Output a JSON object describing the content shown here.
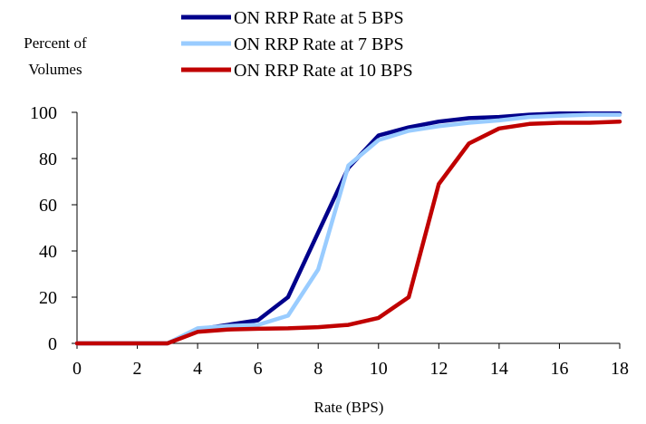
{
  "chart_data": {
    "type": "line",
    "xlabel": "Rate (BPS)",
    "ylabel": "Percent of Volumes",
    "ylabel_lines": [
      "Percent of",
      "Volumes"
    ],
    "xlim": [
      0,
      18
    ],
    "ylim": [
      0,
      100
    ],
    "x_ticks": [
      0,
      2,
      4,
      6,
      8,
      10,
      12,
      14,
      16,
      18
    ],
    "y_ticks": [
      0,
      20,
      40,
      60,
      80,
      100
    ],
    "grid": false,
    "legend_position": "top",
    "series": [
      {
        "name": "ON RRP Rate at 5 BPS",
        "color": "#00008B",
        "x": [
          0,
          1,
          2,
          3,
          4,
          5,
          6,
          7,
          8,
          9,
          10,
          11,
          12,
          13,
          14,
          15,
          16,
          17,
          18
        ],
        "y": [
          0,
          0,
          0,
          0,
          6,
          8,
          10,
          20,
          48,
          76,
          90,
          93.5,
          96,
          97.5,
          98,
          99,
          99.5,
          99.5,
          99.5
        ]
      },
      {
        "name": "ON RRP Rate at 7 BPS",
        "color": "#99CCFF",
        "x": [
          0,
          1,
          2,
          3,
          4,
          5,
          6,
          7,
          8,
          9,
          10,
          11,
          12,
          13,
          14,
          15,
          16,
          17,
          18
        ],
        "y": [
          0,
          0,
          0,
          0,
          6.5,
          7.5,
          8,
          12,
          32,
          77,
          88,
          92,
          94,
          95.5,
          96.5,
          98,
          98.5,
          99,
          99
        ]
      },
      {
        "name": "ON RRP Rate at 10 BPS",
        "color": "#C00000",
        "x": [
          0,
          1,
          2,
          3,
          4,
          5,
          6,
          7,
          8,
          9,
          10,
          11,
          12,
          13,
          14,
          15,
          16,
          17,
          18
        ],
        "y": [
          0,
          0,
          0,
          0,
          5,
          6,
          6.3,
          6.5,
          7,
          8,
          11,
          20,
          69,
          86.5,
          93,
          95,
          95.5,
          95.5,
          96
        ]
      }
    ]
  }
}
